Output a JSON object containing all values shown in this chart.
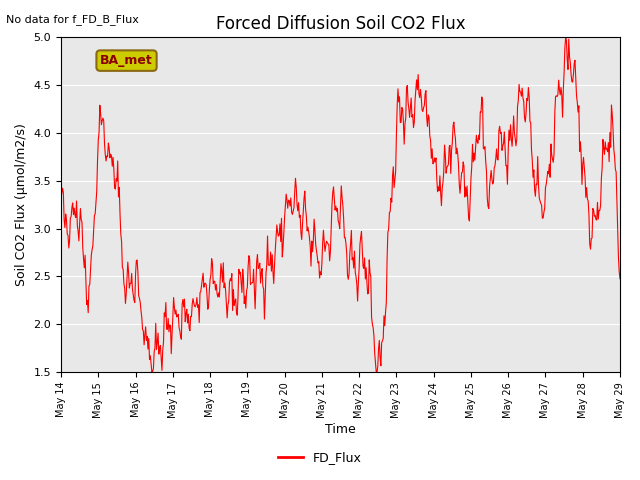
{
  "title": "Forced Diffusion Soil CO2 Flux",
  "xlabel": "Time",
  "ylabel": "Soil CO2 Flux (μmol/m2/s)",
  "note": "No data for f_FD_B_Flux",
  "legend_label": "FD_Flux",
  "line_color": "red",
  "ylim": [
    1.5,
    5.0
  ],
  "yticks": [
    1.5,
    2.0,
    2.5,
    3.0,
    3.5,
    4.0,
    4.5,
    5.0
  ],
  "xtick_labels": [
    "May 14",
    "May 15",
    "May 16",
    "May 17",
    "May 18",
    "May 19",
    "May 20",
    "May 21",
    "May 22",
    "May 23",
    "May 24",
    "May 25",
    "May 26",
    "May 27",
    "May 28",
    "May 29"
  ],
  "bg_color": "#e8e8e8",
  "plot_bg": "#e8e8e8",
  "annotation_box_color": "#cccc00",
  "annotation_text": "BA_met",
  "annotation_text_color": "#8B0000"
}
